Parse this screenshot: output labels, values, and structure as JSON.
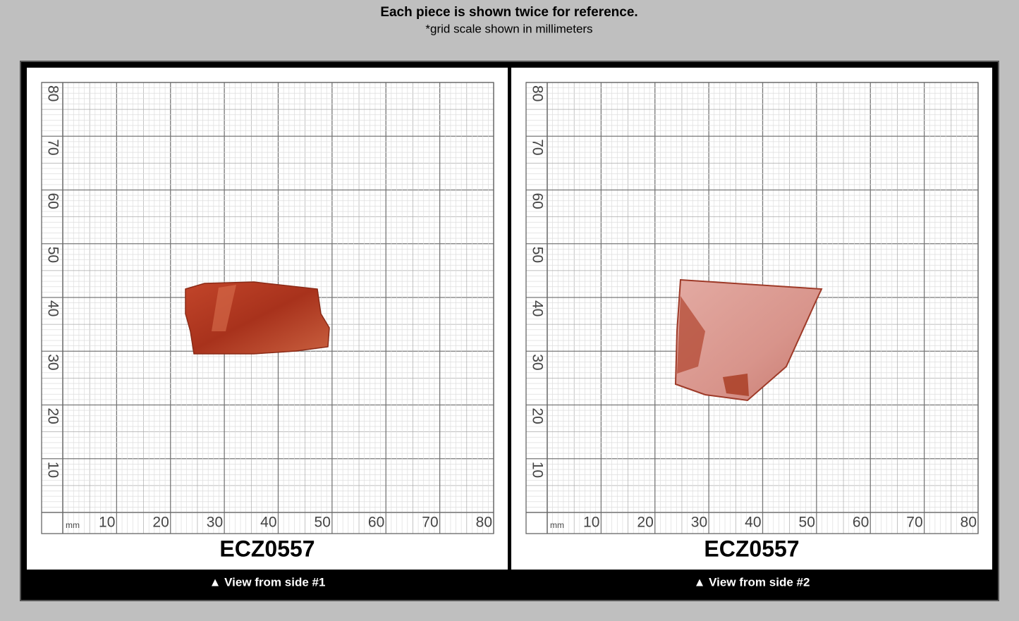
{
  "header": {
    "title": "Each piece is shown twice for reference.",
    "subtitle": "*grid scale shown in millimeters"
  },
  "grid": {
    "unit": "mm",
    "x_labels": [
      10,
      20,
      30,
      40,
      50,
      60,
      70,
      80
    ],
    "y_labels": [
      10,
      20,
      30,
      40,
      50,
      60,
      70,
      80
    ]
  },
  "panels": [
    {
      "code": "ECZ0557",
      "caption": "▲ View from side #1"
    },
    {
      "code": "ECZ0557",
      "caption": "▲ View from side #2"
    }
  ]
}
